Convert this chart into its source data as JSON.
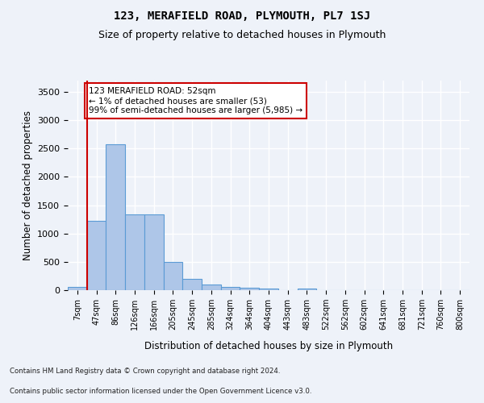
{
  "title": "123, MERAFIELD ROAD, PLYMOUTH, PL7 1SJ",
  "subtitle": "Size of property relative to detached houses in Plymouth",
  "xlabel": "Distribution of detached houses by size in Plymouth",
  "ylabel": "Number of detached properties",
  "footnote1": "Contains HM Land Registry data © Crown copyright and database right 2024.",
  "footnote2": "Contains public sector information licensed under the Open Government Licence v3.0.",
  "bar_labels": [
    "7sqm",
    "47sqm",
    "86sqm",
    "126sqm",
    "166sqm",
    "205sqm",
    "245sqm",
    "285sqm",
    "324sqm",
    "364sqm",
    "404sqm",
    "443sqm",
    "483sqm",
    "522sqm",
    "562sqm",
    "602sqm",
    "641sqm",
    "681sqm",
    "721sqm",
    "760sqm",
    "800sqm"
  ],
  "bar_values": [
    50,
    1230,
    2570,
    1340,
    1340,
    495,
    195,
    100,
    50,
    45,
    35,
    0,
    35,
    0,
    0,
    0,
    0,
    0,
    0,
    0,
    0
  ],
  "bar_color": "#aec6e8",
  "bar_edge_color": "#5b9bd5",
  "annotation_text": "123 MERAFIELD ROAD: 52sqm\n← 1% of detached houses are smaller (53)\n99% of semi-detached houses are larger (5,985) →",
  "annotation_box_color": "#ffffff",
  "annotation_border_color": "#cc0000",
  "vline_color": "#cc0000",
  "vline_x": 0.5,
  "ylim": [
    0,
    3700
  ],
  "yticks": [
    0,
    500,
    1000,
    1500,
    2000,
    2500,
    3000,
    3500
  ],
  "bg_color": "#eef2f9",
  "axes_bg_color": "#eef2f9",
  "grid_color": "#ffffff",
  "title_fontsize": 10,
  "subtitle_fontsize": 9,
  "xlabel_fontsize": 8.5,
  "ylabel_fontsize": 8.5
}
